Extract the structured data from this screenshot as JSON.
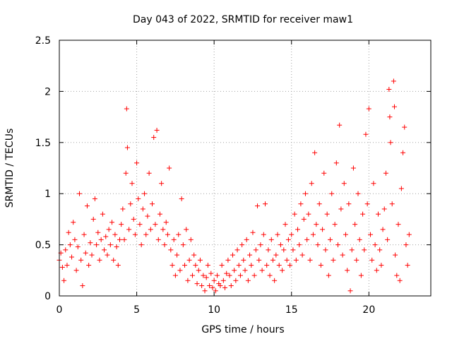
{
  "chart_data": {
    "type": "scatter",
    "title": "Day 043 of 2022, SRMTID for receiver maw1",
    "xlabel": "GPS time / hours",
    "ylabel": "SRMTID / TECUs",
    "xlim": [
      0,
      24
    ],
    "ylim": [
      0,
      2.5
    ],
    "xticks": [
      0,
      5,
      10,
      15,
      20
    ],
    "xtick_labels": [
      "0",
      "5",
      "10",
      "15",
      "20"
    ],
    "yticks": [
      0,
      0.5,
      1,
      1.5,
      2,
      2.5
    ],
    "ytick_labels": [
      "0",
      "0.5",
      "1",
      "1.5",
      "2",
      "2.5"
    ],
    "grid": true,
    "marker": "+",
    "color": "#ff0000",
    "series": [
      {
        "name": "maw1",
        "points": [
          [
            0.0,
            0.35
          ],
          [
            0.1,
            0.42
          ],
          [
            0.2,
            0.28
          ],
          [
            0.3,
            0.15
          ],
          [
            0.4,
            0.45
          ],
          [
            0.5,
            0.3
          ],
          [
            0.6,
            0.62
          ],
          [
            0.7,
            0.5
          ],
          [
            0.8,
            0.38
          ],
          [
            0.9,
            0.72
          ],
          [
            1.0,
            0.55
          ],
          [
            1.1,
            0.25
          ],
          [
            1.2,
            0.48
          ],
          [
            1.3,
            1.0
          ],
          [
            1.4,
            0.35
          ],
          [
            1.5,
            0.1
          ],
          [
            1.6,
            0.6
          ],
          [
            1.7,
            0.42
          ],
          [
            1.8,
            0.88
          ],
          [
            1.9,
            0.3
          ],
          [
            2.0,
            0.52
          ],
          [
            2.1,
            0.4
          ],
          [
            2.2,
            0.75
          ],
          [
            2.3,
            0.95
          ],
          [
            2.4,
            0.5
          ],
          [
            2.5,
            0.62
          ],
          [
            2.6,
            0.35
          ],
          [
            2.7,
            0.55
          ],
          [
            2.8,
            0.8
          ],
          [
            2.9,
            0.45
          ],
          [
            3.0,
            0.58
          ],
          [
            3.1,
            0.4
          ],
          [
            3.2,
            0.65
          ],
          [
            3.3,
            0.5
          ],
          [
            3.4,
            0.72
          ],
          [
            3.5,
            0.35
          ],
          [
            3.6,
            0.6
          ],
          [
            3.7,
            0.48
          ],
          [
            3.8,
            0.3
          ],
          [
            3.9,
            0.55
          ],
          [
            4.0,
            0.7
          ],
          [
            4.1,
            0.85
          ],
          [
            4.2,
            0.55
          ],
          [
            4.3,
            1.2
          ],
          [
            4.35,
            1.83
          ],
          [
            4.4,
            1.45
          ],
          [
            4.5,
            0.65
          ],
          [
            4.6,
            0.9
          ],
          [
            4.7,
            1.1
          ],
          [
            4.8,
            0.75
          ],
          [
            4.9,
            0.6
          ],
          [
            5.0,
            1.3
          ],
          [
            5.1,
            0.95
          ],
          [
            5.2,
            0.7
          ],
          [
            5.3,
            0.5
          ],
          [
            5.4,
            0.85
          ],
          [
            5.5,
            1.0
          ],
          [
            5.6,
            0.6
          ],
          [
            5.7,
            0.78
          ],
          [
            5.8,
            1.2
          ],
          [
            5.9,
            0.65
          ],
          [
            6.0,
            0.9
          ],
          [
            6.1,
            1.55
          ],
          [
            6.2,
            0.7
          ],
          [
            6.3,
            1.62
          ],
          [
            6.4,
            0.55
          ],
          [
            6.5,
            0.8
          ],
          [
            6.6,
            1.1
          ],
          [
            6.7,
            0.65
          ],
          [
            6.8,
            0.5
          ],
          [
            6.9,
            0.72
          ],
          [
            7.0,
            0.6
          ],
          [
            7.1,
            1.25
          ],
          [
            7.2,
            0.45
          ],
          [
            7.3,
            0.3
          ],
          [
            7.4,
            0.55
          ],
          [
            7.5,
            0.2
          ],
          [
            7.6,
            0.4
          ],
          [
            7.7,
            0.6
          ],
          [
            7.8,
            0.25
          ],
          [
            7.9,
            0.95
          ],
          [
            8.0,
            0.5
          ],
          [
            8.1,
            0.3
          ],
          [
            8.2,
            0.65
          ],
          [
            8.3,
            0.15
          ],
          [
            8.4,
            0.35
          ],
          [
            8.5,
            0.55
          ],
          [
            8.6,
            0.2
          ],
          [
            8.7,
            0.4
          ],
          [
            8.8,
            0.3
          ],
          [
            8.9,
            0.12
          ],
          [
            9.0,
            0.25
          ],
          [
            9.1,
            0.35
          ],
          [
            9.2,
            0.1
          ],
          [
            9.3,
            0.2
          ],
          [
            9.4,
            0.05
          ],
          [
            9.5,
            0.18
          ],
          [
            9.6,
            0.3
          ],
          [
            9.7,
            0.1
          ],
          [
            9.8,
            0.22
          ],
          [
            9.9,
            0.08
          ],
          [
            10.0,
            0.15
          ],
          [
            10.1,
            0.05
          ],
          [
            10.2,
            0.2
          ],
          [
            10.3,
            0.12
          ],
          [
            10.4,
            0.1
          ],
          [
            10.5,
            0.3
          ],
          [
            10.6,
            0.15
          ],
          [
            10.7,
            0.08
          ],
          [
            10.8,
            0.22
          ],
          [
            10.9,
            0.35
          ],
          [
            11.0,
            0.2
          ],
          [
            11.1,
            0.1
          ],
          [
            11.2,
            0.4
          ],
          [
            11.3,
            0.25
          ],
          [
            11.4,
            0.15
          ],
          [
            11.5,
            0.45
          ],
          [
            11.6,
            0.3
          ],
          [
            11.7,
            0.2
          ],
          [
            11.8,
            0.5
          ],
          [
            11.9,
            0.35
          ],
          [
            12.0,
            0.25
          ],
          [
            12.1,
            0.55
          ],
          [
            12.2,
            0.15
          ],
          [
            12.3,
            0.4
          ],
          [
            12.4,
            0.3
          ],
          [
            12.5,
            0.62
          ],
          [
            12.6,
            0.2
          ],
          [
            12.7,
            0.45
          ],
          [
            12.8,
            0.88
          ],
          [
            12.9,
            0.35
          ],
          [
            13.0,
            0.5
          ],
          [
            13.1,
            0.25
          ],
          [
            13.2,
            0.6
          ],
          [
            13.3,
            0.9
          ],
          [
            13.4,
            0.3
          ],
          [
            13.5,
            0.45
          ],
          [
            13.6,
            0.2
          ],
          [
            13.7,
            0.55
          ],
          [
            13.8,
            0.35
          ],
          [
            13.9,
            0.15
          ],
          [
            14.0,
            0.4
          ],
          [
            14.1,
            0.6
          ],
          [
            14.2,
            0.3
          ],
          [
            14.3,
            0.5
          ],
          [
            14.4,
            0.25
          ],
          [
            14.5,
            0.45
          ],
          [
            14.6,
            0.7
          ],
          [
            14.7,
            0.35
          ],
          [
            14.8,
            0.55
          ],
          [
            14.9,
            0.3
          ],
          [
            15.0,
            0.6
          ],
          [
            15.1,
            0.45
          ],
          [
            15.2,
            0.8
          ],
          [
            15.3,
            0.35
          ],
          [
            15.4,
            0.65
          ],
          [
            15.5,
            0.5
          ],
          [
            15.6,
            0.9
          ],
          [
            15.7,
            0.4
          ],
          [
            15.8,
            0.75
          ],
          [
            15.9,
            1.0
          ],
          [
            16.0,
            0.55
          ],
          [
            16.1,
            0.8
          ],
          [
            16.2,
            0.35
          ],
          [
            16.3,
            1.1
          ],
          [
            16.4,
            0.6
          ],
          [
            16.5,
            1.4
          ],
          [
            16.6,
            0.7
          ],
          [
            16.7,
            0.5
          ],
          [
            16.8,
            0.9
          ],
          [
            16.9,
            0.3
          ],
          [
            17.0,
            0.65
          ],
          [
            17.1,
            1.2
          ],
          [
            17.2,
            0.45
          ],
          [
            17.3,
            0.8
          ],
          [
            17.4,
            0.2
          ],
          [
            17.5,
            0.55
          ],
          [
            17.6,
            1.0
          ],
          [
            17.7,
            0.35
          ],
          [
            17.8,
            0.7
          ],
          [
            17.9,
            1.3
          ],
          [
            18.0,
            0.5
          ],
          [
            18.1,
            1.67
          ],
          [
            18.2,
            0.85
          ],
          [
            18.3,
            0.4
          ],
          [
            18.4,
            1.1
          ],
          [
            18.5,
            0.6
          ],
          [
            18.6,
            0.25
          ],
          [
            18.7,
            0.9
          ],
          [
            18.8,
            0.05
          ],
          [
            18.9,
            0.45
          ],
          [
            19.0,
            1.25
          ],
          [
            19.1,
            0.7
          ],
          [
            19.2,
            0.35
          ],
          [
            19.3,
            1.0
          ],
          [
            19.4,
            0.55
          ],
          [
            19.5,
            0.2
          ],
          [
            19.6,
            0.8
          ],
          [
            19.7,
            0.45
          ],
          [
            19.8,
            1.58
          ],
          [
            19.9,
            0.9
          ],
          [
            20.0,
            1.83
          ],
          [
            20.1,
            0.6
          ],
          [
            20.2,
            0.35
          ],
          [
            20.3,
            1.1
          ],
          [
            20.4,
            0.5
          ],
          [
            20.5,
            0.25
          ],
          [
            20.6,
            0.8
          ],
          [
            20.7,
            0.45
          ],
          [
            20.8,
            0.3
          ],
          [
            20.9,
            0.65
          ],
          [
            21.0,
            0.85
          ],
          [
            21.1,
            1.2
          ],
          [
            21.2,
            0.55
          ],
          [
            21.3,
            2.02
          ],
          [
            21.35,
            1.75
          ],
          [
            21.4,
            1.5
          ],
          [
            21.5,
            0.9
          ],
          [
            21.6,
            2.1
          ],
          [
            21.65,
            1.85
          ],
          [
            21.7,
            0.4
          ],
          [
            21.8,
            0.2
          ],
          [
            21.9,
            0.7
          ],
          [
            22.0,
            0.15
          ],
          [
            22.1,
            1.05
          ],
          [
            22.2,
            1.4
          ],
          [
            22.3,
            1.65
          ],
          [
            22.4,
            0.5
          ],
          [
            22.5,
            0.3
          ],
          [
            22.6,
            0.6
          ]
        ]
      }
    ]
  }
}
